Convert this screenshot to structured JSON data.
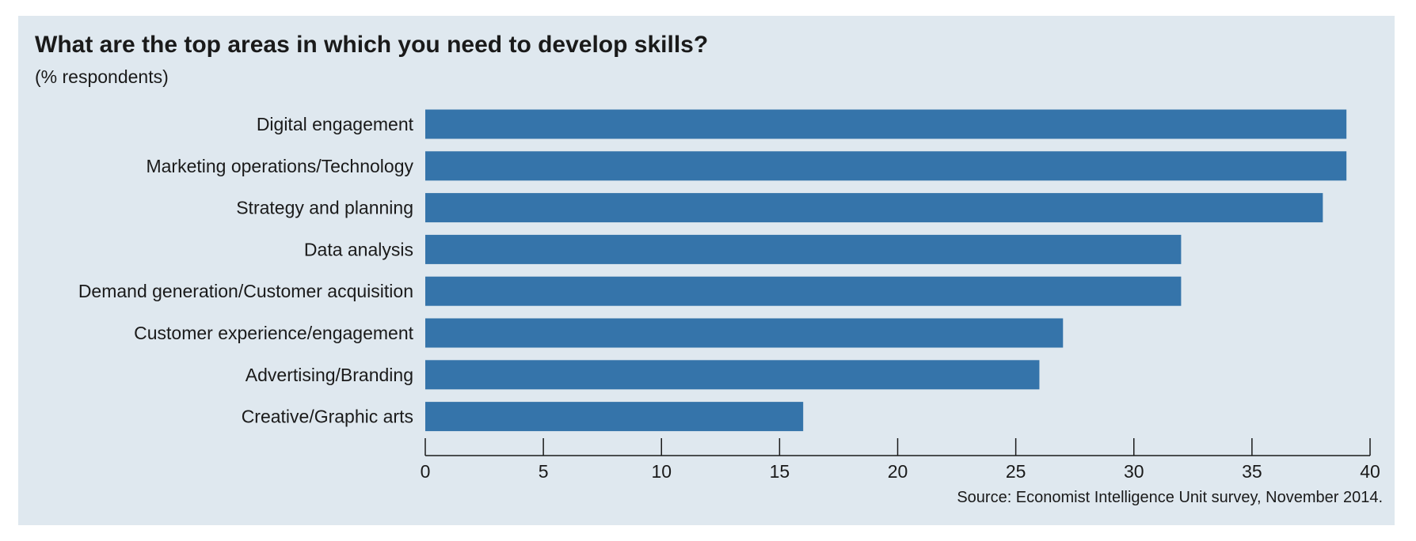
{
  "chart_data": {
    "type": "bar",
    "orientation": "horizontal",
    "title": "What are the top areas in which you need to develop skills?",
    "subtitle": "(% respondents)",
    "source": "Source: Economist Intelligence Unit survey, November 2014.",
    "categories": [
      "Digital engagement",
      "Marketing operations/Technology",
      "Strategy and planning",
      "Data analysis",
      "Demand generation/Customer acquisition",
      "Customer experience/engagement",
      "Advertising/Branding",
      "Creative/Graphic arts"
    ],
    "values": [
      39,
      39,
      38,
      32,
      32,
      27,
      26,
      16
    ],
    "xlim": [
      0,
      40
    ],
    "xticks": [
      "0",
      "5",
      "10",
      "15",
      "20",
      "25",
      "30",
      "35",
      "40"
    ],
    "bar_color": "#3574aa",
    "background_color": "#dfe8ef",
    "grid": false,
    "legend": "none"
  }
}
